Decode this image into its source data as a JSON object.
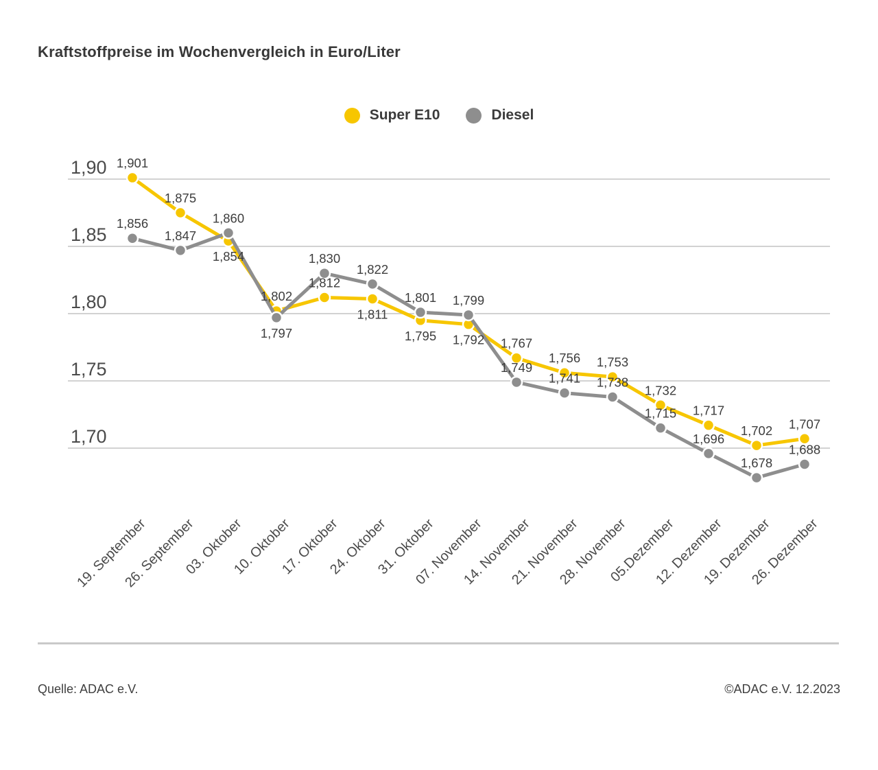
{
  "title": "Kraftstoffpreise im Wochenvergleich in Euro/Liter",
  "legend": {
    "items": [
      {
        "label": "Super E10",
        "color": "#F7C600"
      },
      {
        "label": "Diesel",
        "color": "#8E8E8E"
      }
    ]
  },
  "footer": {
    "source": "Quelle: ADAC e.V.",
    "copyright": "©ADAC e.V. 12.2023"
  },
  "chart_data": {
    "type": "line",
    "title": "Kraftstoffpreise im Wochenvergleich in Euro/Liter",
    "unit": "Euro/Liter",
    "categories": [
      "19. September",
      "26. September",
      "03. Oktober",
      "10. Oktober",
      "17. Oktober",
      "24. Oktober",
      "31. Oktober",
      "07. November",
      "14. November",
      "21. November",
      "28. November",
      "05.Dezember",
      "12. Dezember",
      "19. Dezember",
      "26. Dezember"
    ],
    "series": [
      {
        "name": "Super E10",
        "color": "#F7C600",
        "values": [
          1.901,
          1.875,
          1.854,
          1.802,
          1.812,
          1.811,
          1.795,
          1.792,
          1.767,
          1.756,
          1.753,
          1.732,
          1.717,
          1.702,
          1.707
        ],
        "label_positions": [
          "above",
          "above",
          "below",
          "above",
          "above",
          "below",
          "below",
          "below",
          "above",
          "above",
          "above",
          "above",
          "above",
          "above",
          "above"
        ]
      },
      {
        "name": "Diesel",
        "color": "#8E8E8E",
        "values": [
          1.856,
          1.847,
          1.86,
          1.797,
          1.83,
          1.822,
          1.801,
          1.799,
          1.749,
          1.741,
          1.738,
          1.715,
          1.696,
          1.678,
          1.688
        ],
        "label_positions": [
          "above",
          "above",
          "above",
          "below",
          "above",
          "above",
          "above",
          "above",
          "above",
          "above",
          "above",
          "above",
          "above",
          "above",
          "above"
        ]
      }
    ],
    "yticks": [
      1.9,
      1.85,
      1.8,
      1.75,
      1.7
    ],
    "ylim": [
      1.665,
      1.91
    ],
    "grid": true,
    "legend_position": "top-center",
    "value_label_format": "comma-decimal-3dp",
    "xlabel": "",
    "ylabel": ""
  }
}
